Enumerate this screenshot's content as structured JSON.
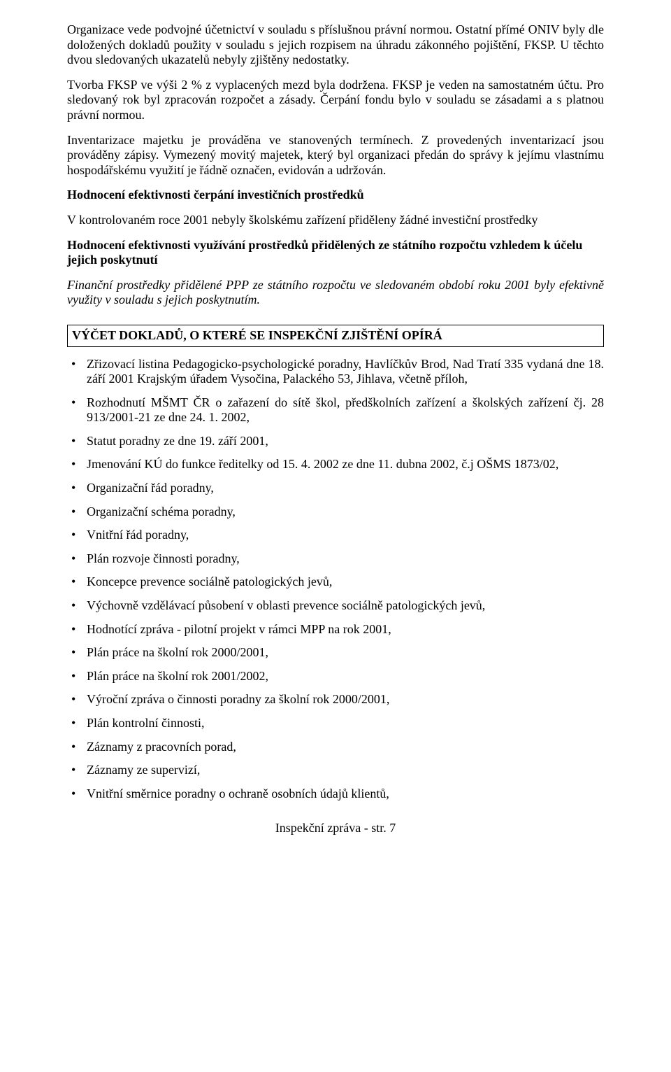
{
  "paragraphs": {
    "p1": "Organizace vede podvojné účetnictví v souladu s příslušnou právní normou. Ostatní přímé ONIV byly dle doložených dokladů použity v souladu s jejich rozpisem na úhradu zákonného pojištění, FKSP. U těchto dvou sledovaných ukazatelů nebyly zjištěny nedostatky.",
    "p2": "Tvorba FKSP ve výši 2 % z vyplacených mezd byla dodržena. FKSP je veden na samostatném účtu. Pro sledovaný rok byl zpracován rozpočet a zásady. Čerpání fondu bylo v souladu se zásadami a s platnou právní normou.",
    "p3": "Inventarizace majetku je prováděna ve stanovených termínech. Z provedených inventarizací jsou prováděny zápisy. Vymezený movitý majetek, který byl organizaci předán do správy k jejímu vlastnímu hospodářskému využití je řádně označen, evidován a udržován."
  },
  "headings": {
    "h1": "Hodnocení efektivnosti čerpání investičních prostředků",
    "h1_text": "V kontrolovaném roce 2001 nebyly školskému zařízení přiděleny žádné investiční prostředky",
    "h2": "Hodnocení efektivnosti využívání prostředků přidělených ze státního rozpočtu vzhledem k účelu jejich poskytnutí",
    "h2_text": "Finanční prostředky přidělené PPP ze státního rozpočtu ve sledovaném období roku 2001 byly efektivně využity v souladu s jejich poskytnutím.",
    "boxed": "VÝČET DOKLADŮ, O KTERÉ SE INSPEKČNÍ ZJIŠTĚNÍ OPÍRÁ"
  },
  "bullets": [
    "Zřizovací listina Pedagogicko-psychologické poradny, Havlíčkův Brod, Nad Tratí 335 vydaná dne 18. září 2001 Krajským úřadem Vysočina, Palackého 53, Jihlava, včetně příloh,",
    "Rozhodnutí MŠMT ČR o zařazení do sítě škol, předškolních zařízení a školských zařízení čj. 28 913/2001-21 ze dne 24. 1. 2002,",
    "Statut poradny ze dne 19. září 2001,",
    "Jmenování KÚ do funkce ředitelky od 15. 4. 2002 ze dne 11. dubna 2002, č.j OŠMS 1873/02,",
    "Organizační řád poradny,",
    "Organizační schéma poradny,",
    "Vnitřní řád poradny,",
    "Plán rozvoje činnosti poradny,",
    "Koncepce prevence sociálně patologických jevů,",
    "Výchovně vzdělávací působení v oblasti prevence sociálně patologických jevů,",
    "Hodnotící zpráva - pilotní projekt v rámci MPP na rok 2001,",
    "Plán práce na školní rok 2000/2001,",
    "Plán práce na školní rok 2001/2002,",
    "Výroční zpráva o činnosti poradny za školní rok 2000/2001,",
    "Plán kontrolní činnosti,",
    "Záznamy z pracovních porad,",
    "Záznamy ze supervizí,",
    "Vnitřní směrnice poradny o ochraně osobních údajů klientů,"
  ],
  "footer": "Inspekční zpráva - str. 7"
}
